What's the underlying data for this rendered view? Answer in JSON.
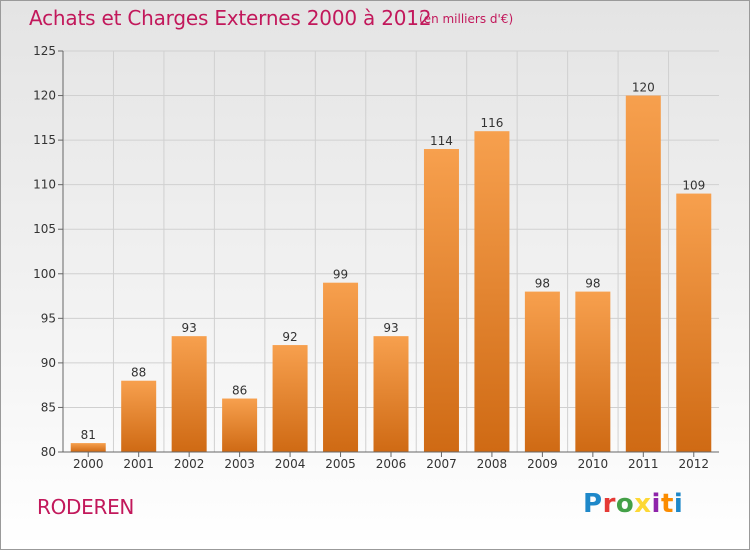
{
  "header": {
    "title": "Achats et Charges Externes 2000 à 2012",
    "subtitle": "(en milliers d'€)"
  },
  "footer": {
    "city": "RODEREN",
    "logo_letters": [
      "P",
      "r",
      "o",
      "x",
      "i",
      "t",
      "i"
    ]
  },
  "colors": {
    "title": "#c2185b",
    "bar_light": "#f7a04e",
    "bar_dark": "#cf6a14",
    "axis": "#666666",
    "grid": "#d0d0d0"
  },
  "chart_data": {
    "type": "bar",
    "categories": [
      "2000",
      "2001",
      "2002",
      "2003",
      "2004",
      "2005",
      "2006",
      "2007",
      "2008",
      "2009",
      "2010",
      "2011",
      "2012"
    ],
    "values": [
      81,
      88,
      93,
      86,
      92,
      99,
      93,
      114,
      116,
      98,
      98,
      120,
      109
    ],
    "ylim": [
      80,
      125
    ],
    "yticks": [
      80,
      85,
      90,
      95,
      100,
      105,
      110,
      115,
      120,
      125
    ],
    "grid": true
  }
}
